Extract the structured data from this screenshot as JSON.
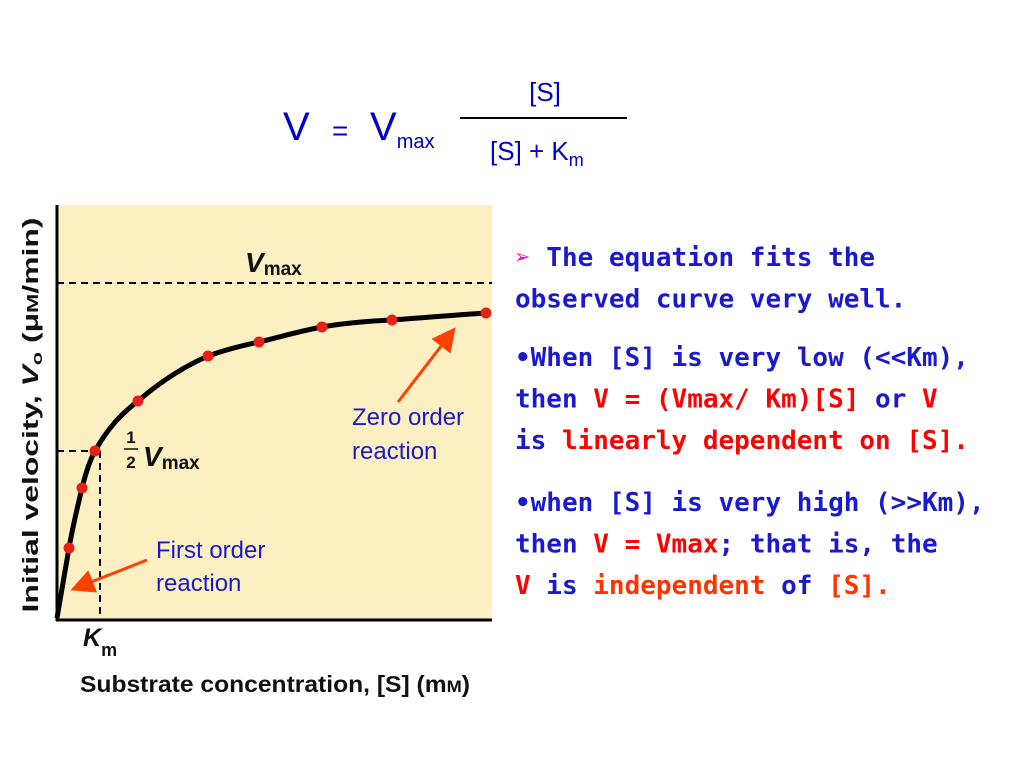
{
  "equation": {
    "lhs": "V",
    "equals": "=",
    "vmax_base": "V",
    "vmax_sub": "max",
    "numerator": "[S]",
    "denominator": "[S] + K",
    "denominator_sub": "m"
  },
  "graph": {
    "y_axis_label": [
      "Initial velocity, ",
      "V",
      "o",
      " (μ",
      "M",
      "/min)"
    ],
    "x_axis_label": [
      "Substrate concentration, [S] (m",
      "M",
      ")"
    ],
    "vmax_label": {
      "base": "V",
      "sub": "max"
    },
    "half_vmax_label": {
      "numerator": "1",
      "denominator": "2",
      "base": "V",
      "sub": "max"
    },
    "km_label": {
      "base": "K",
      "sub": "m"
    },
    "zero_order": [
      "Zero order",
      "reaction"
    ],
    "first_order": [
      "First order",
      "reaction"
    ]
  },
  "bullets": [
    [
      [
        {
          "text": "➢",
          "color": "#ff00cc"
        },
        {
          "text": " The equation fits the",
          "color": "#1a1acc"
        }
      ],
      [
        {
          "text": "observed curve very well.",
          "color": "#1a1acc"
        }
      ]
    ],
    [
      [
        {
          "text": "•When [S] is very low (<<Km),",
          "color": "#1a1acc"
        }
      ],
      [
        {
          "text": "then ",
          "color": "#1a1acc"
        },
        {
          "text": "V = (Vmax/ Km)[S]",
          "color": "#ff0000"
        },
        {
          "text": " or ",
          "color": "#1a1acc"
        },
        {
          "text": "V",
          "color": "#ff0000"
        }
      ],
      [
        {
          "text": "is ",
          "color": "#1a1acc"
        },
        {
          "text": "linearly dependent on [S].",
          "color": "#ff0000"
        }
      ]
    ],
    [
      [
        {
          "text": "•when [S] is very high (>>Km),",
          "color": "#1a1acc"
        }
      ],
      [
        {
          "text": "then ",
          "color": "#1a1acc"
        },
        {
          "text": "V = Vmax",
          "color": "#ff0000"
        },
        {
          "text": "; that is, the",
          "color": "#1a1acc"
        }
      ],
      [
        {
          "text": "V",
          "color": "#ff0000"
        },
        {
          "text": " is ",
          "color": "#1a1acc"
        },
        {
          "text": "independent",
          "color": "#ff3300"
        },
        {
          "text": " of ",
          "color": "#1a1acc"
        },
        {
          "text": "[S].",
          "color": "#ff3300"
        }
      ]
    ]
  ]
}
